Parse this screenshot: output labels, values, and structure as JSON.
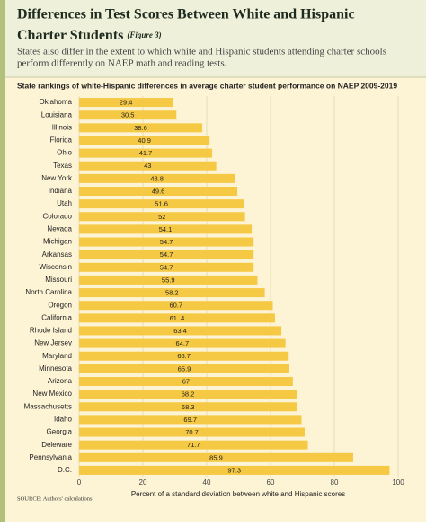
{
  "chart_data": {
    "type": "hbar",
    "title": "Differences in Test Scores Between White and Hispanic",
    "title_line2": "Charter Students",
    "figure_label": "(Figure 3)",
    "subtitle": "States also differ in the extent to which white and Hispanic students attending charter schools",
    "subtitle_line2": "perform differently on NAEP math and reading tests.",
    "chart_title": "State rankings of white-Hispanic differences in average charter student performance on NAEP 2009-2019",
    "x_label": "Percent of a standard deviation between white and Hispanic scores",
    "source": "SOURCE: Authors' calculations",
    "categories": [
      "Oklahoma",
      "Louisiana",
      "Illinois",
      "Florida",
      "Ohio",
      "Texas",
      "New York",
      "Indiana",
      "Utah",
      "Colorado",
      "Nevada",
      "Michigan",
      "Arkansas",
      "Wisconsin",
      "Missouri",
      "North Carolina",
      "Oregon",
      "California",
      "Rhode Island",
      "New Jersey",
      "Maryland",
      "Minnesota",
      "Arizona",
      "New Mexico",
      "Massachusetts",
      "Idaho",
      "Georgia",
      "Deleware",
      "Pennsylvania",
      "D.C."
    ],
    "values": [
      29.4,
      30.5,
      38.6,
      40.9,
      41.7,
      43,
      48.8,
      49.6,
      51.6,
      52,
      54.1,
      54.7,
      54.7,
      54.7,
      55.9,
      58.2,
      60.7,
      61.4,
      63.4,
      64.7,
      65.7,
      65.9,
      67,
      68.2,
      68.3,
      69.7,
      70.7,
      71.7,
      85.9,
      97.3
    ],
    "value_labels": [
      "29.4",
      "30.5",
      "38.6",
      "40.9",
      "41.7",
      "43",
      "48.8",
      "49.6",
      "51.6",
      "52",
      "54.1",
      "54.7",
      "54.7",
      "54.7",
      "55.9",
      "58.2",
      "60.7",
      "61 .4",
      "63.4",
      "64.7",
      "65.7",
      "65.9",
      "67",
      "68.2",
      "68.3",
      "69.7",
      "70.7",
      "71.7",
      "85.9",
      "97.3"
    ],
    "color": "#f6c945",
    "xlim": [
      0,
      100
    ],
    "xticks": [
      0,
      20,
      40,
      60,
      80,
      100
    ],
    "grid": true
  }
}
